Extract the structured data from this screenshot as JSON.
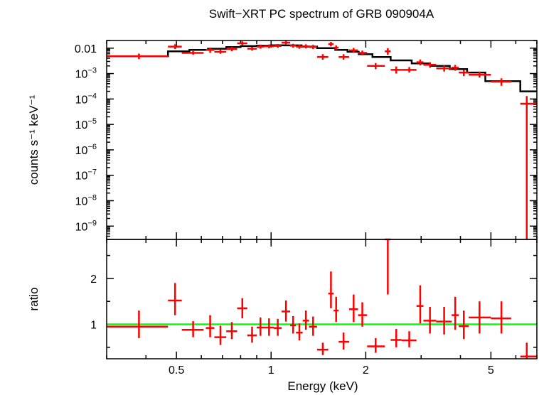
{
  "chart_data": [
    {
      "type": "scatter",
      "title": "Swift−XRT PC spectrum of GRB 090904A",
      "xlabel": "",
      "ylabel": "counts s⁻¹ keV⁻¹",
      "xscale": "log",
      "yscale": "log",
      "xlim": [
        0.3,
        7.0
      ],
      "ylim": [
        3e-10,
        0.02
      ],
      "yticks": [
        {
          "value": 0.01,
          "base": "0.01",
          "exp": ""
        },
        {
          "value": 0.001,
          "base": "10",
          "exp": "−3"
        },
        {
          "value": 0.0001,
          "base": "10",
          "exp": "−4"
        },
        {
          "value": 1e-05,
          "base": "10",
          "exp": "−5"
        },
        {
          "value": 1e-06,
          "base": "10",
          "exp": "−6"
        },
        {
          "value": 1e-07,
          "base": "10",
          "exp": "−7"
        },
        {
          "value": 1e-08,
          "base": "10",
          "exp": "−8"
        },
        {
          "value": 1e-09,
          "base": "10",
          "exp": "−9"
        }
      ],
      "model_color": "#000000",
      "data_color": "#ff0000",
      "model": [
        [
          0.3,
          0.47,
          0.0048
        ],
        [
          0.47,
          0.55,
          0.0075
        ],
        [
          0.55,
          0.63,
          0.0085
        ],
        [
          0.63,
          0.72,
          0.0095
        ],
        [
          0.72,
          0.8,
          0.011
        ],
        [
          0.8,
          0.9,
          0.012
        ],
        [
          0.9,
          1.0,
          0.0125
        ],
        [
          1.0,
          1.1,
          0.013
        ],
        [
          1.1,
          1.25,
          0.0128
        ],
        [
          1.25,
          1.4,
          0.0115
        ],
        [
          1.4,
          1.6,
          0.01
        ],
        [
          1.6,
          1.75,
          0.0085
        ],
        [
          1.75,
          1.9,
          0.0072
        ],
        [
          1.9,
          2.1,
          0.0058
        ],
        [
          2.1,
          2.4,
          0.0045
        ],
        [
          2.4,
          2.8,
          0.0033
        ],
        [
          2.8,
          3.2,
          0.0025
        ],
        [
          3.2,
          3.7,
          0.002
        ],
        [
          3.7,
          4.2,
          0.0015
        ],
        [
          4.2,
          4.8,
          0.0011
        ],
        [
          4.8,
          6.2,
          0.0005
        ],
        [
          6.2,
          7.0,
          0.0002
        ]
      ],
      "points": [
        {
          "x": 0.38,
          "xlo": 0.3,
          "xhi": 0.47,
          "y": 0.0048,
          "ylo": 0.0037,
          "yhi": 0.0061
        },
        {
          "x": 0.495,
          "xlo": 0.47,
          "xhi": 0.52,
          "y": 0.0115,
          "ylo": 0.0092,
          "yhi": 0.0142
        },
        {
          "x": 0.565,
          "xlo": 0.52,
          "xhi": 0.61,
          "y": 0.0065,
          "ylo": 0.0055,
          "yhi": 0.0077
        },
        {
          "x": 0.64,
          "xlo": 0.62,
          "xhi": 0.66,
          "y": 0.0085,
          "ylo": 0.0065,
          "yhi": 0.0105
        },
        {
          "x": 0.69,
          "xlo": 0.66,
          "xhi": 0.72,
          "y": 0.0072,
          "ylo": 0.006,
          "yhi": 0.0088
        },
        {
          "x": 0.75,
          "xlo": 0.72,
          "xhi": 0.78,
          "y": 0.0092,
          "ylo": 0.0075,
          "yhi": 0.0112
        },
        {
          "x": 0.81,
          "xlo": 0.78,
          "xhi": 0.84,
          "y": 0.0155,
          "ylo": 0.013,
          "yhi": 0.0185
        },
        {
          "x": 0.87,
          "xlo": 0.84,
          "xhi": 0.9,
          "y": 0.0095,
          "ylo": 0.008,
          "yhi": 0.0112
        },
        {
          "x": 0.925,
          "xlo": 0.9,
          "xhi": 0.95,
          "y": 0.0115,
          "ylo": 0.0095,
          "yhi": 0.0138
        },
        {
          "x": 0.985,
          "xlo": 0.95,
          "xhi": 1.02,
          "y": 0.0118,
          "ylo": 0.0098,
          "yhi": 0.014
        },
        {
          "x": 1.05,
          "xlo": 1.02,
          "xhi": 1.08,
          "y": 0.0122,
          "ylo": 0.0103,
          "yhi": 0.0145
        },
        {
          "x": 1.115,
          "xlo": 1.08,
          "xhi": 1.15,
          "y": 0.0165,
          "ylo": 0.014,
          "yhi": 0.0195
        },
        {
          "x": 1.175,
          "xlo": 1.15,
          "xhi": 1.2,
          "y": 0.0125,
          "ylo": 0.0105,
          "yhi": 0.0148
        },
        {
          "x": 1.23,
          "xlo": 1.2,
          "xhi": 1.26,
          "y": 0.0115,
          "ylo": 0.0095,
          "yhi": 0.0138
        },
        {
          "x": 1.29,
          "xlo": 1.26,
          "xhi": 1.32,
          "y": 0.0118,
          "ylo": 0.0097,
          "yhi": 0.0142
        },
        {
          "x": 1.36,
          "xlo": 1.32,
          "xhi": 1.4,
          "y": 0.0112,
          "ylo": 0.0092,
          "yhi": 0.0135
        },
        {
          "x": 1.46,
          "xlo": 1.4,
          "xhi": 1.52,
          "y": 0.0045,
          "ylo": 0.0035,
          "yhi": 0.0058
        },
        {
          "x": 1.55,
          "xlo": 1.52,
          "xhi": 1.58,
          "y": 0.0145,
          "ylo": 0.0118,
          "yhi": 0.0175
        },
        {
          "x": 1.61,
          "xlo": 1.58,
          "xhi": 1.64,
          "y": 0.0105,
          "ylo": 0.0085,
          "yhi": 0.0128
        },
        {
          "x": 1.7,
          "xlo": 1.64,
          "xhi": 1.77,
          "y": 0.0045,
          "ylo": 0.0035,
          "yhi": 0.0058
        },
        {
          "x": 1.83,
          "xlo": 1.77,
          "xhi": 1.89,
          "y": 0.0082,
          "ylo": 0.0066,
          "yhi": 0.0102
        },
        {
          "x": 1.95,
          "xlo": 1.89,
          "xhi": 2.02,
          "y": 0.0065,
          "ylo": 0.0052,
          "yhi": 0.008
        },
        {
          "x": 2.15,
          "xlo": 2.02,
          "xhi": 2.3,
          "y": 0.002,
          "ylo": 0.0015,
          "yhi": 0.0026
        },
        {
          "x": 2.35,
          "xlo": 2.3,
          "xhi": 2.4,
          "y": 0.0075,
          "ylo": 0.0055,
          "yhi": 0.01
        },
        {
          "x": 2.5,
          "xlo": 2.4,
          "xhi": 2.6,
          "y": 0.0014,
          "ylo": 0.001,
          "yhi": 0.0019
        },
        {
          "x": 2.75,
          "xlo": 2.6,
          "xhi": 2.9,
          "y": 0.0014,
          "ylo": 0.0011,
          "yhi": 0.0018
        },
        {
          "x": 2.98,
          "xlo": 2.9,
          "xhi": 3.05,
          "y": 0.0028,
          "ylo": 0.0021,
          "yhi": 0.0036
        },
        {
          "x": 3.2,
          "xlo": 3.05,
          "xhi": 3.35,
          "y": 0.0022,
          "ylo": 0.0017,
          "yhi": 0.0028
        },
        {
          "x": 3.55,
          "xlo": 3.35,
          "xhi": 3.75,
          "y": 0.0016,
          "ylo": 0.0012,
          "yhi": 0.0021
        },
        {
          "x": 3.85,
          "xlo": 3.75,
          "xhi": 3.95,
          "y": 0.0017,
          "ylo": 0.0013,
          "yhi": 0.0022
        },
        {
          "x": 4.1,
          "xlo": 3.95,
          "xhi": 4.25,
          "y": 0.0011,
          "ylo": 0.0008,
          "yhi": 0.0014
        },
        {
          "x": 4.6,
          "xlo": 4.25,
          "xhi": 5.0,
          "y": 0.0009,
          "ylo": 0.0007,
          "yhi": 0.0012
        },
        {
          "x": 5.4,
          "xlo": 5.0,
          "xhi": 5.8,
          "y": 0.00048,
          "ylo": 0.00033,
          "yhi": 0.00065
        },
        {
          "x": 6.5,
          "xlo": 6.2,
          "xhi": 7.0,
          "y": 6.5e-05,
          "ylo": 1e-11,
          "yhi": 0.00013
        }
      ]
    },
    {
      "type": "scatter",
      "title": "",
      "xlabel": "Energy (keV)",
      "ylabel": "ratio",
      "xscale": "log",
      "yscale": "linear",
      "xlim": [
        0.3,
        7.0
      ],
      "ylim": [
        0.25,
        2.85
      ],
      "xticks": [
        {
          "value": 0.5,
          "label": "0.5"
        },
        {
          "value": 1,
          "label": "1"
        },
        {
          "value": 2,
          "label": "2"
        },
        {
          "value": 5,
          "label": "5"
        }
      ],
      "yticks": [
        {
          "value": 1,
          "label": "1"
        },
        {
          "value": 2,
          "label": "2"
        }
      ],
      "reference_line": 1.0,
      "reference_color": "#00ff00",
      "data_color": "#ff0000",
      "points": [
        {
          "x": 0.38,
          "xlo": 0.3,
          "xhi": 0.47,
          "y": 0.95,
          "ylo": 0.7,
          "yhi": 1.3
        },
        {
          "x": 0.495,
          "xlo": 0.47,
          "xhi": 0.52,
          "y": 1.52,
          "ylo": 1.2,
          "yhi": 1.9
        },
        {
          "x": 0.565,
          "xlo": 0.52,
          "xhi": 0.61,
          "y": 0.88,
          "ylo": 0.72,
          "yhi": 1.07
        },
        {
          "x": 0.64,
          "xlo": 0.62,
          "xhi": 0.66,
          "y": 0.92,
          "ylo": 0.72,
          "yhi": 1.2
        },
        {
          "x": 0.69,
          "xlo": 0.66,
          "xhi": 0.72,
          "y": 0.72,
          "ylo": 0.55,
          "yhi": 0.97
        },
        {
          "x": 0.75,
          "xlo": 0.72,
          "xhi": 0.78,
          "y": 0.85,
          "ylo": 0.68,
          "yhi": 1.05
        },
        {
          "x": 0.81,
          "xlo": 0.78,
          "xhi": 0.84,
          "y": 1.35,
          "ylo": 1.13,
          "yhi": 1.57
        },
        {
          "x": 0.87,
          "xlo": 0.84,
          "xhi": 0.9,
          "y": 0.76,
          "ylo": 0.6,
          "yhi": 0.95
        },
        {
          "x": 0.925,
          "xlo": 0.9,
          "xhi": 0.95,
          "y": 0.93,
          "ylo": 0.75,
          "yhi": 1.15
        },
        {
          "x": 0.985,
          "xlo": 0.95,
          "xhi": 1.02,
          "y": 0.93,
          "ylo": 0.75,
          "yhi": 1.13
        },
        {
          "x": 1.05,
          "xlo": 1.02,
          "xhi": 1.08,
          "y": 0.92,
          "ylo": 0.75,
          "yhi": 1.12
        },
        {
          "x": 1.115,
          "xlo": 1.08,
          "xhi": 1.15,
          "y": 1.28,
          "ylo": 1.06,
          "yhi": 1.52
        },
        {
          "x": 1.175,
          "xlo": 1.15,
          "xhi": 1.2,
          "y": 0.98,
          "ylo": 0.8,
          "yhi": 1.18
        },
        {
          "x": 1.23,
          "xlo": 1.2,
          "xhi": 1.26,
          "y": 0.82,
          "ylo": 0.65,
          "yhi": 1.02
        },
        {
          "x": 1.29,
          "xlo": 1.26,
          "xhi": 1.32,
          "y": 1.08,
          "ylo": 0.88,
          "yhi": 1.3
        },
        {
          "x": 1.36,
          "xlo": 1.32,
          "xhi": 1.4,
          "y": 0.95,
          "ylo": 0.75,
          "yhi": 1.17
        },
        {
          "x": 1.46,
          "xlo": 1.4,
          "xhi": 1.52,
          "y": 0.45,
          "ylo": 0.33,
          "yhi": 0.6
        },
        {
          "x": 1.55,
          "xlo": 1.52,
          "xhi": 1.58,
          "y": 1.67,
          "ylo": 1.35,
          "yhi": 2.15
        },
        {
          "x": 1.61,
          "xlo": 1.58,
          "xhi": 1.64,
          "y": 1.3,
          "ylo": 1.05,
          "yhi": 1.6
        },
        {
          "x": 1.7,
          "xlo": 1.64,
          "xhi": 1.77,
          "y": 0.62,
          "ylo": 0.45,
          "yhi": 0.82
        },
        {
          "x": 1.83,
          "xlo": 1.77,
          "xhi": 1.89,
          "y": 1.33,
          "ylo": 1.05,
          "yhi": 1.65
        },
        {
          "x": 1.95,
          "xlo": 1.89,
          "xhi": 2.02,
          "y": 1.2,
          "ylo": 0.95,
          "yhi": 1.48
        },
        {
          "x": 2.15,
          "xlo": 2.02,
          "xhi": 2.3,
          "y": 0.52,
          "ylo": 0.38,
          "yhi": 0.7
        },
        {
          "x": 2.35,
          "xlo": 2.3,
          "xhi": 2.4,
          "y": 2.85,
          "ylo": 1.65,
          "yhi": 2.85
        },
        {
          "x": 2.5,
          "xlo": 2.4,
          "xhi": 2.6,
          "y": 0.66,
          "ylo": 0.5,
          "yhi": 0.9
        },
        {
          "x": 2.75,
          "xlo": 2.6,
          "xhi": 2.9,
          "y": 0.65,
          "ylo": 0.5,
          "yhi": 0.85
        },
        {
          "x": 2.98,
          "xlo": 2.9,
          "xhi": 3.05,
          "y": 1.4,
          "ylo": 1.02,
          "yhi": 1.85
        },
        {
          "x": 3.2,
          "xlo": 3.05,
          "xhi": 3.35,
          "y": 1.08,
          "ylo": 0.8,
          "yhi": 1.38
        },
        {
          "x": 3.55,
          "xlo": 3.35,
          "xhi": 3.75,
          "y": 1.06,
          "ylo": 0.78,
          "yhi": 1.38
        },
        {
          "x": 3.85,
          "xlo": 3.75,
          "xhi": 3.95,
          "y": 1.2,
          "ylo": 0.88,
          "yhi": 1.6
        },
        {
          "x": 4.1,
          "xlo": 3.95,
          "xhi": 4.25,
          "y": 0.96,
          "ylo": 0.68,
          "yhi": 1.3
        },
        {
          "x": 4.6,
          "xlo": 4.25,
          "xhi": 5.0,
          "y": 1.15,
          "ylo": 0.8,
          "yhi": 1.5
        },
        {
          "x": 5.4,
          "xlo": 5.0,
          "xhi": 5.8,
          "y": 1.13,
          "ylo": 0.8,
          "yhi": 1.5
        },
        {
          "x": 6.5,
          "xlo": 6.2,
          "xhi": 7.0,
          "y": 0.3,
          "ylo": 0.25,
          "yhi": 0.6
        }
      ]
    }
  ]
}
